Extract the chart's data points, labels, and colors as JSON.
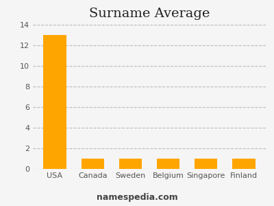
{
  "title": "Surname Average",
  "categories": [
    "USA",
    "Canada",
    "Sweden",
    "Belgium",
    "Singapore",
    "Finland"
  ],
  "values": [
    13,
    1,
    1,
    1,
    1,
    1
  ],
  "bar_color": "#FFA500",
  "ylim": [
    0,
    14
  ],
  "yticks": [
    0,
    2,
    4,
    6,
    8,
    10,
    12,
    14
  ],
  "grid_color": "#bbbbbb",
  "background_color": "#f5f5f5",
  "title_fontsize": 14,
  "tick_fontsize": 8,
  "xlabel_fontsize": 8,
  "watermark": "namespedia.com",
  "watermark_fontsize": 9
}
